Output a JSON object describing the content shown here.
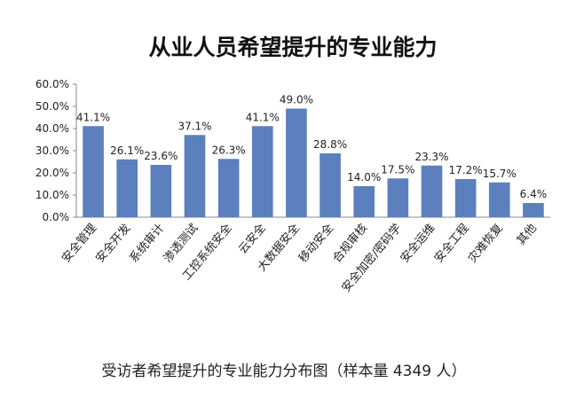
{
  "chart_data": {
    "type": "bar",
    "title": "从业人员希望提升的专业能力",
    "categories": [
      "安全管理",
      "安全开发",
      "系统审计",
      "渗透测试",
      "工控系统安全",
      "云安全",
      "大数据安全",
      "移动安全",
      "合规审核",
      "安全加密/密码学",
      "安全运维",
      "安全工程",
      "灾难恢复",
      "其他"
    ],
    "values": [
      41.1,
      26.1,
      23.6,
      37.1,
      26.3,
      41.1,
      49.0,
      28.8,
      14.0,
      17.5,
      23.3,
      17.2,
      15.7,
      6.4
    ],
    "value_labels": [
      "41.1%",
      "26.1%",
      "23.6%",
      "37.1%",
      "26.3%",
      "41.1%",
      "49.0%",
      "28.8%",
      "14.0%",
      "17.5%",
      "23.3%",
      "17.2%",
      "15.7%",
      "6.4%"
    ],
    "y_ticks": [
      "0.0%",
      "10.0%",
      "20.0%",
      "30.0%",
      "40.0%",
      "50.0%",
      "60.0%"
    ],
    "ylim": [
      0,
      60
    ],
    "xlabel": "",
    "ylabel": "",
    "grid": false,
    "legend": "none",
    "bar_color": "#5b80bd"
  },
  "caption": "受访者希望提升的专业能力分布图（样本量 4349 人）"
}
